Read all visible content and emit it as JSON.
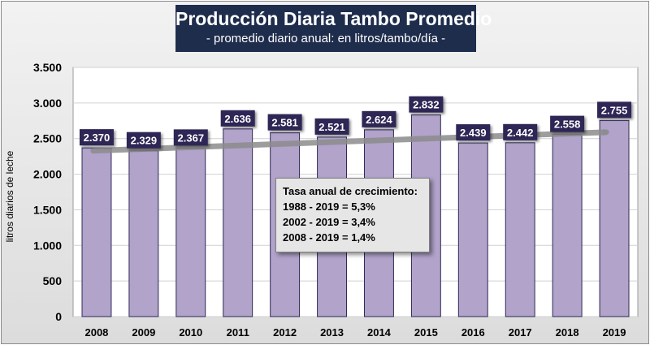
{
  "title": "Producción Diaria Tambo Promedio",
  "subtitle": "- promedio diario anual: en litros/tambo/día -",
  "annotation": {
    "heading": "Tasa anual de crecimiento:",
    "lines": [
      "1988 - 2019 = 5,3%",
      "2002 - 2019 = 3,4%",
      "2008 - 2019 = 1,4%"
    ]
  },
  "colors": {
    "bar": "#b1a3ca",
    "bar_border": "#2f2a55",
    "label_bg": "#2e2854",
    "trend": "#8c8c8c",
    "title_bg": "#1f2d4d"
  },
  "chart_data": {
    "type": "bar",
    "categories": [
      "2008",
      "2009",
      "2010",
      "2011",
      "2012",
      "2013",
      "2014",
      "2015",
      "2016",
      "2017",
      "2018",
      "2019"
    ],
    "values": [
      2370,
      2329,
      2367,
      2636,
      2581,
      2521,
      2624,
      2832,
      2439,
      2442,
      2558,
      2755
    ],
    "value_labels": [
      "2.370",
      "2.329",
      "2.367",
      "2.636",
      "2.581",
      "2.521",
      "2.624",
      "2.832",
      "2.439",
      "2.442",
      "2.558",
      "2.755"
    ],
    "ylabel": "litros diarios de leche",
    "ylim": [
      0,
      3500
    ],
    "yticks": [
      0,
      500,
      1000,
      1500,
      2000,
      2500,
      3000,
      3500
    ],
    "ytick_labels": [
      "0",
      "500",
      "1.000",
      "1.500",
      "2.000",
      "2.500",
      "3.000",
      "3.500"
    ],
    "grid": true,
    "trendline": {
      "start": 2330,
      "end": 2590,
      "arrow": true
    }
  }
}
